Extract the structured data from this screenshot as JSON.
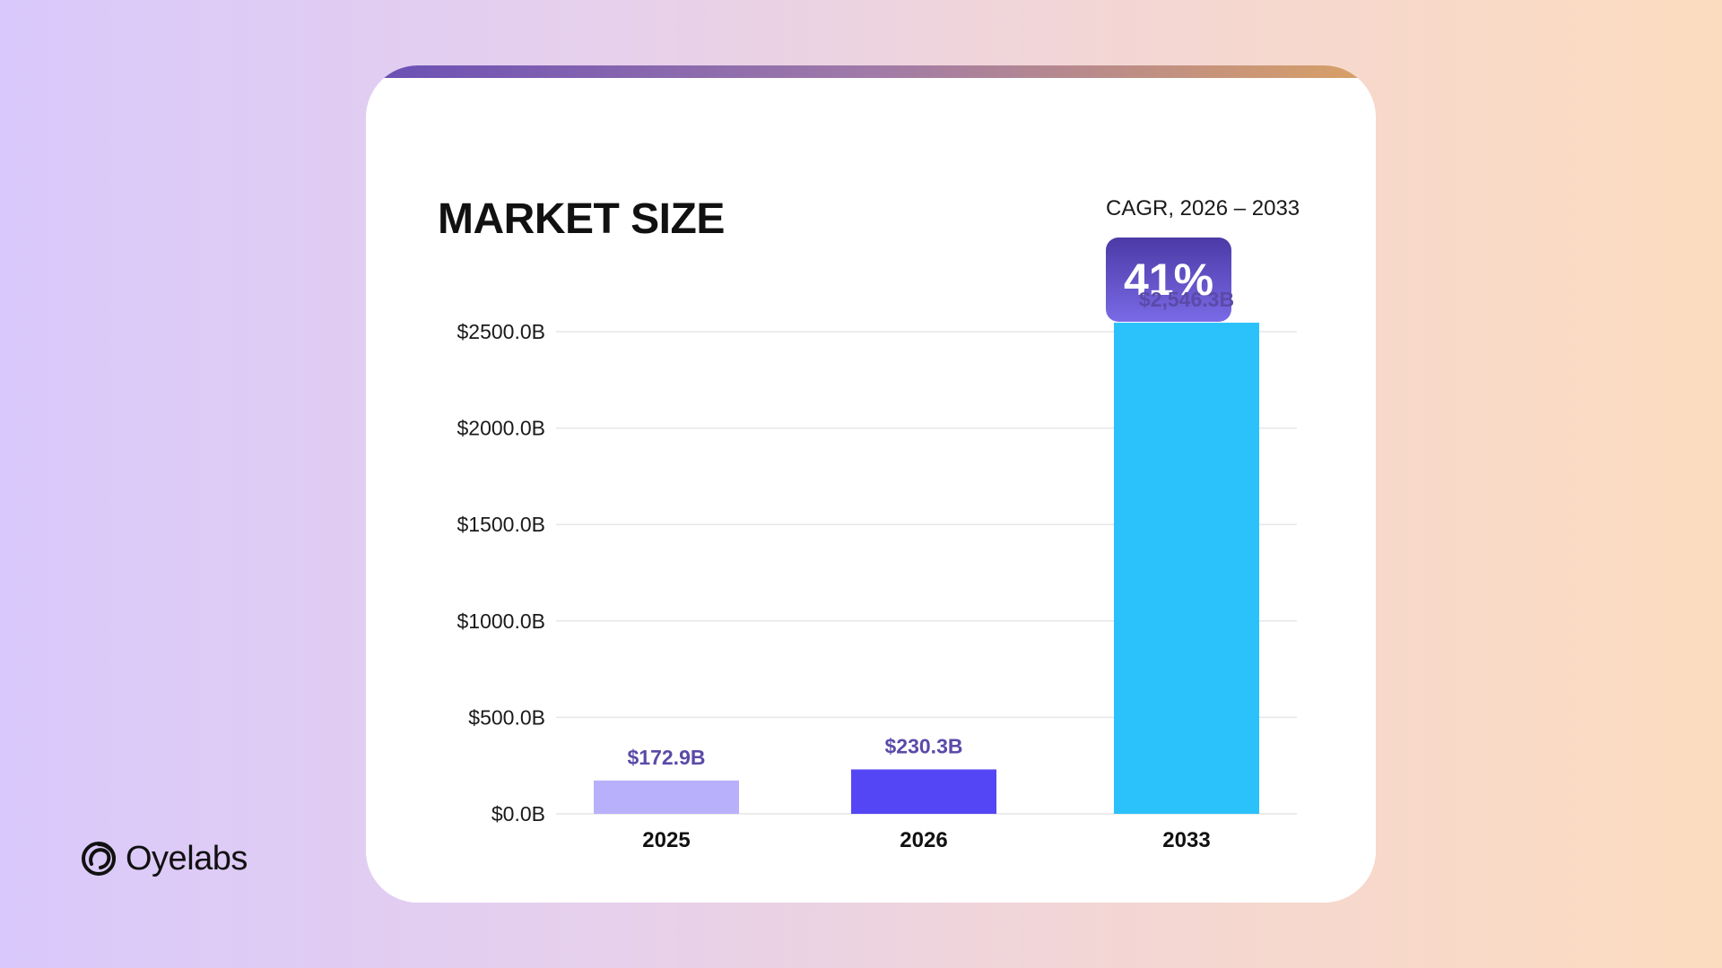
{
  "brand": {
    "name": "Oyelabs",
    "logo_icon": "oyelabs-swirl-icon"
  },
  "card": {
    "title": "MARKET SIZE",
    "cagr_label": "CAGR, 2026 – 2033",
    "cagr_value": "41%"
  },
  "colors": {
    "bar_2025": "#b8b0fb",
    "bar_2026": "#5546f5",
    "bar_2033": "#2bc1fb",
    "value_label": "#5b4aa8",
    "gridline": "#e6e6e6"
  },
  "chart_data": {
    "type": "bar",
    "title": "MARKET SIZE",
    "xlabel": "",
    "ylabel": "",
    "categories": [
      "2025",
      "2026",
      "2033"
    ],
    "values": [
      172.9,
      230.3,
      2546.3
    ],
    "value_labels": [
      "$172.9B",
      "$230.3B",
      "$2,546.3B"
    ],
    "bar_colors": [
      "#b8b0fb",
      "#5546f5",
      "#2bc1fb"
    ],
    "ylim": [
      0,
      2500
    ],
    "yticks": [
      0,
      500,
      1000,
      1500,
      2000,
      2500
    ],
    "ytick_labels": [
      "$0.0B",
      "$500.0B",
      "$1000.0B",
      "$1500.0B",
      "$2000.0B",
      "$2500.0B"
    ],
    "grid": true,
    "legend": "none"
  }
}
